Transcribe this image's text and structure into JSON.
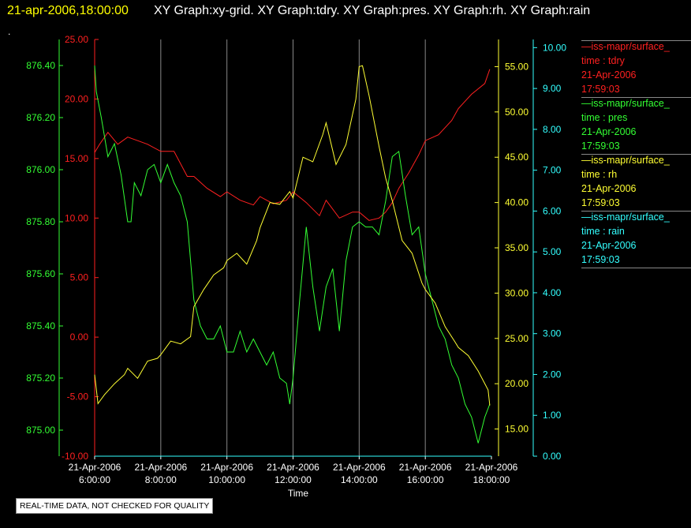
{
  "header": {
    "timestamp": "21-apr-2006,18:00:00",
    "graphs": "XY Graph:xy-grid.  XY Graph:tdry.  XY Graph:pres.  XY Graph:rh.  XY Graph:rain",
    "dot": "."
  },
  "legend": [
    {
      "source": "—iss-mapr/surface_",
      "param": "time : tdry",
      "date": "21-Apr-2006",
      "time": "17:59:03",
      "color": "#ff2020"
    },
    {
      "source": "—iss-mapr/surface_",
      "param": "time : pres",
      "date": "21-Apr-2006",
      "time": "17:59:03",
      "color": "#33ff33"
    },
    {
      "source": "—iss-mapr/surface_",
      "param": "time : rh",
      "date": "21-Apr-2006",
      "time": "17:59:03",
      "color": "#ffff33"
    },
    {
      "source": "—iss-mapr/surface_",
      "param": "time : rain",
      "date": "21-Apr-2006",
      "time": "17:59:03",
      "color": "#33ffff"
    }
  ],
  "disclaimer": "REAL-TIME DATA, NOT CHECKED FOR QUALITY",
  "chart_data": {
    "type": "line",
    "title": "",
    "xlabel": "Time",
    "grid": "vertical lines at each x tick",
    "x_ticks": [
      {
        "date": "21-Apr-2006",
        "time": "6:00:00"
      },
      {
        "date": "21-Apr-2006",
        "time": "8:00:00"
      },
      {
        "date": "21-Apr-2006",
        "time": "10:00:00"
      },
      {
        "date": "21-Apr-2006",
        "time": "12:00:00"
      },
      {
        "date": "21-Apr-2006",
        "time": "14:00:00"
      },
      {
        "date": "21-Apr-2006",
        "time": "16:00:00"
      },
      {
        "date": "21-Apr-2006",
        "time": "18:00:00"
      }
    ],
    "xlim_hours": [
      6,
      18
    ],
    "axes": {
      "pres": {
        "side": "left-outer",
        "color": "#33ff33",
        "ylim": [
          874.9,
          876.5
        ],
        "ticks": [
          "875.00",
          "875.20",
          "875.40",
          "875.60",
          "875.80",
          "876.00",
          "876.20",
          "876.40"
        ]
      },
      "tdry": {
        "side": "left-inner",
        "color": "#ff2020",
        "ylim": [
          -10,
          25
        ],
        "ticks": [
          "-10.00",
          "-5.00",
          "0.00",
          "5.00",
          "10.00",
          "15.00",
          "20.00",
          "25.00"
        ]
      },
      "rh": {
        "side": "right-inner",
        "color": "#ffff33",
        "ylim": [
          12,
          58
        ],
        "ticks": [
          "15.00",
          "20.00",
          "25.00",
          "30.00",
          "35.00",
          "40.00",
          "45.00",
          "50.00",
          "55.00"
        ]
      },
      "rain": {
        "side": "right-outer",
        "color": "#33ffff",
        "ylim": [
          0,
          10.2
        ],
        "ticks": [
          "0.00",
          "1.00",
          "2.00",
          "3.00",
          "4.00",
          "5.00",
          "6.00",
          "7.00",
          "8.00",
          "9.00",
          "10.00"
        ]
      }
    },
    "series": [
      {
        "name": "time : tdry",
        "axis": "tdry",
        "color": "#ff2020",
        "x": [
          6.0,
          6.15,
          6.4,
          6.7,
          7.0,
          7.3,
          7.6,
          8.0,
          8.4,
          8.8,
          9.0,
          9.4,
          9.8,
          10.0,
          10.4,
          10.8,
          11.0,
          11.4,
          11.8,
          12.0,
          12.4,
          12.8,
          13.0,
          13.4,
          13.8,
          14.0,
          14.3,
          14.6,
          14.8,
          15.0,
          15.2,
          15.5,
          15.8,
          16.0,
          16.4,
          16.8,
          17.0,
          17.4,
          17.8,
          17.95
        ],
        "values": [
          15.5,
          16.2,
          17.2,
          16.2,
          16.8,
          16.5,
          16.2,
          15.6,
          15.6,
          13.5,
          13.5,
          12.5,
          11.8,
          12.2,
          11.5,
          11.1,
          11.8,
          11.2,
          11.5,
          12.2,
          11.3,
          10.2,
          11.5,
          10.0,
          10.5,
          10.5,
          9.8,
          10.0,
          10.5,
          11.3,
          12.5,
          13.8,
          15.3,
          16.5,
          17.0,
          18.2,
          19.2,
          20.4,
          21.3,
          22.5
        ]
      },
      {
        "name": "time : pres",
        "axis": "pres",
        "color": "#33ff33",
        "x": [
          6.0,
          6.05,
          6.2,
          6.4,
          6.6,
          6.8,
          7.0,
          7.1,
          7.2,
          7.4,
          7.6,
          7.8,
          8.0,
          8.2,
          8.4,
          8.6,
          8.8,
          9.0,
          9.2,
          9.4,
          9.6,
          9.8,
          10.0,
          10.2,
          10.4,
          10.6,
          10.8,
          11.0,
          11.2,
          11.4,
          11.6,
          11.8,
          11.9,
          12.0,
          12.2,
          12.4,
          12.6,
          12.8,
          13.0,
          13.2,
          13.4,
          13.6,
          13.8,
          14.0,
          14.2,
          14.4,
          14.6,
          14.8,
          15.0,
          15.2,
          15.4,
          15.6,
          15.8,
          16.0,
          16.2,
          16.4,
          16.6,
          16.8,
          17.0,
          17.2,
          17.4,
          17.6,
          17.8,
          17.95
        ],
        "values": [
          876.4,
          876.3,
          876.2,
          876.05,
          876.1,
          875.98,
          875.8,
          875.8,
          875.95,
          875.9,
          876.0,
          876.02,
          875.95,
          876.02,
          875.95,
          875.9,
          875.8,
          875.5,
          875.4,
          875.35,
          875.35,
          875.4,
          875.3,
          875.3,
          875.38,
          875.3,
          875.35,
          875.3,
          875.25,
          875.3,
          875.2,
          875.18,
          875.1,
          875.2,
          875.5,
          875.78,
          875.55,
          875.38,
          875.55,
          875.62,
          875.38,
          875.65,
          875.78,
          875.8,
          875.78,
          875.78,
          875.75,
          875.88,
          876.05,
          876.07,
          875.9,
          875.75,
          875.78,
          875.6,
          875.5,
          875.4,
          875.35,
          875.25,
          875.2,
          875.1,
          875.05,
          874.95,
          875.05,
          875.1
        ]
      },
      {
        "name": "time : rh",
        "axis": "rh",
        "color": "#ffff33",
        "x": [
          6.0,
          6.1,
          6.3,
          6.6,
          6.9,
          7.0,
          7.3,
          7.6,
          7.9,
          8.0,
          8.3,
          8.6,
          8.9,
          9.0,
          9.3,
          9.6,
          9.9,
          10.0,
          10.3,
          10.6,
          10.9,
          11.0,
          11.3,
          11.6,
          11.9,
          12.0,
          12.3,
          12.6,
          12.9,
          13.0,
          13.3,
          13.6,
          13.9,
          14.0,
          14.1,
          14.3,
          14.6,
          14.8,
          15.0,
          15.3,
          15.6,
          15.9,
          16.0,
          16.3,
          16.6,
          16.9,
          17.0,
          17.3,
          17.6,
          17.9,
          17.95
        ],
        "values": [
          21.0,
          17.8,
          18.8,
          20.0,
          21.0,
          21.7,
          20.6,
          22.5,
          22.8,
          23.2,
          24.7,
          24.4,
          25.2,
          28.5,
          30.4,
          32.0,
          32.8,
          33.6,
          34.4,
          33.2,
          35.8,
          37.2,
          40.0,
          39.8,
          41.2,
          40.5,
          45.0,
          44.5,
          47.5,
          48.8,
          44.2,
          46.4,
          51.4,
          55.0,
          55.1,
          51.8,
          46.2,
          42.7,
          40.2,
          35.8,
          34.4,
          31.1,
          30.4,
          28.9,
          26.3,
          24.6,
          24.0,
          23.1,
          21.4,
          19.3,
          17.6
        ]
      },
      {
        "name": "time : rain",
        "axis": "rain",
        "color": "#33ffff",
        "x": [
          6.0,
          18.0
        ],
        "values": [
          0.0,
          0.0
        ]
      }
    ]
  }
}
